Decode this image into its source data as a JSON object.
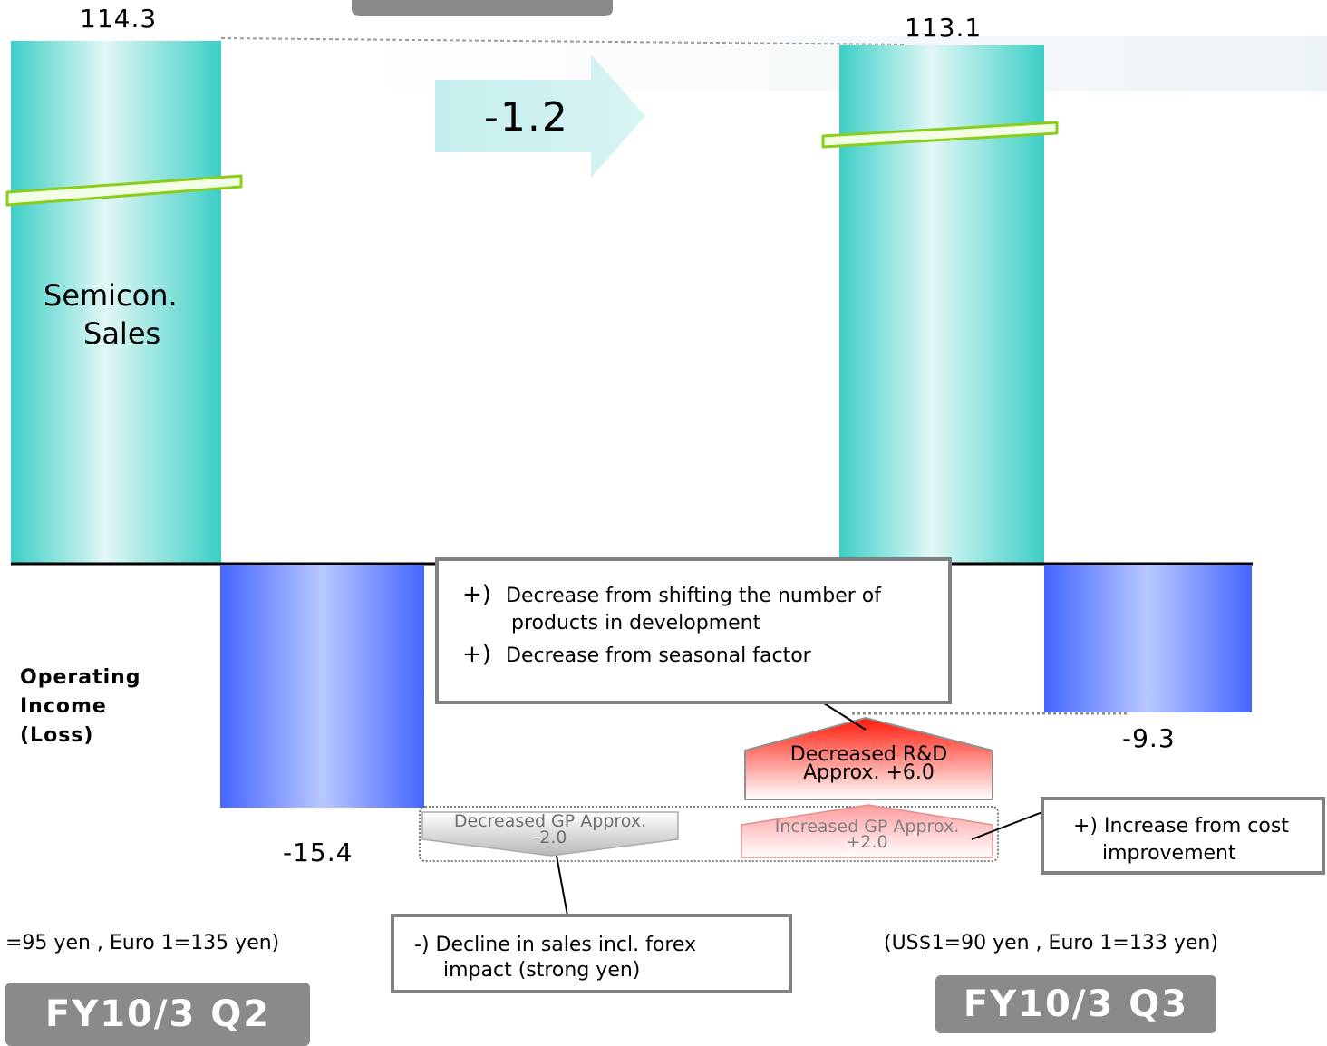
{
  "chart_data": {
    "type": "bar",
    "periods": [
      {
        "label": "FY10/3 Q2",
        "sales": 114.3,
        "operating_income": -15.4,
        "forex": "=95 yen , Euro 1=135 yen)"
      },
      {
        "label": "FY10/3 Q3",
        "sales": 113.1,
        "operating_income": -9.3,
        "forex": "(US$1=90 yen , Euro 1=133 yen)"
      }
    ],
    "sales_label": "Semicon. Sales",
    "sales_change": "-1.2",
    "income_label": "Operating Income (Loss)",
    "bridge": [
      {
        "label": "Decreased GP Approx.",
        "value": "-2.0"
      },
      {
        "label": "Increased GP Approx.",
        "value": "+2.0"
      },
      {
        "label": "Decreased R&D",
        "value": "Approx. +6.0"
      }
    ],
    "colors": {
      "sales": "#3cd0c8",
      "income": "#4466ff",
      "positive": "#ff2a1a",
      "negative": "#b0b0b0"
    }
  },
  "labels": {
    "sales_q2": "114.3",
    "sales_q3": "113.1",
    "change": "-1.2",
    "sales_line1": "Semicon.",
    "sales_line2": "Sales",
    "income_line1": "Operating",
    "income_line2": "Income",
    "income_line3": "(Loss)",
    "income_q2": "-15.4",
    "income_q3": "-9.3",
    "rd_line1": "Decreased R&D",
    "rd_line2": "Approx. +6.0",
    "gp_dec_line1": "Decreased GP Approx.",
    "gp_dec_line2": "-2.0",
    "gp_inc_line1": "Increased GP Approx.",
    "gp_inc_line2": "+2.0",
    "fx_q2": "=95 yen , Euro 1=135 yen)",
    "fx_q3": "(US$1=90 yen , Euro 1=133 yen)",
    "period_q2": "FY10/3 Q2",
    "period_q3": "FY10/3 Q3"
  },
  "callouts": {
    "rd_item1_sym": "+)",
    "rd_item1a": "Decrease from shifting the number of",
    "rd_item1b": "products in development",
    "rd_item2_sym": "+)",
    "rd_item2": "Decrease from seasonal factor",
    "cost_line1": "+) Increase from cost",
    "cost_line2": "improvement",
    "sales_line1": "-) Decline in sales incl. forex",
    "sales_line2": "impact (strong yen)"
  }
}
